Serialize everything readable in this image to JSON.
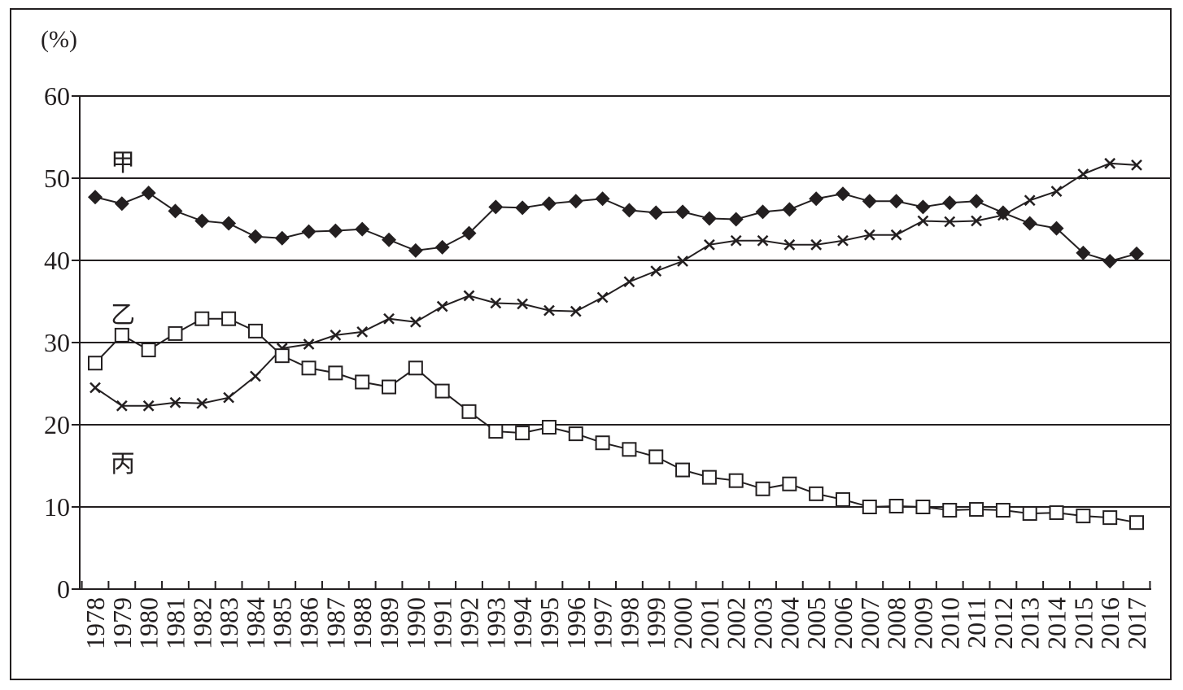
{
  "chart_data": {
    "type": "line",
    "ylabel": "(%)",
    "ylim": [
      0,
      60
    ],
    "yticks": [
      0,
      10,
      20,
      30,
      40,
      50,
      60
    ],
    "grid": true,
    "categories": [
      "1978",
      "1979",
      "1980",
      "1981",
      "1982",
      "1983",
      "1984",
      "1985",
      "1986",
      "1987",
      "1988",
      "1989",
      "1990",
      "1991",
      "1992",
      "1993",
      "1994",
      "1995",
      "1996",
      "1997",
      "1998",
      "1999",
      "2000",
      "2001",
      "2002",
      "2003",
      "2004",
      "2005",
      "2006",
      "2007",
      "2008",
      "2009",
      "2010",
      "2011",
      "2012",
      "2013",
      "2014",
      "2015",
      "2016",
      "2017"
    ],
    "series": [
      {
        "name": "甲",
        "marker": "diamond",
        "values": [
          47.7,
          46.9,
          48.2,
          46.0,
          44.8,
          44.5,
          42.9,
          42.7,
          43.5,
          43.6,
          43.8,
          42.5,
          41.2,
          41.6,
          43.3,
          46.5,
          46.4,
          46.9,
          47.2,
          47.5,
          46.1,
          45.8,
          45.9,
          45.1,
          45.0,
          45.9,
          46.2,
          47.5,
          48.1,
          47.2,
          47.2,
          46.5,
          47.0,
          47.2,
          45.8,
          44.5,
          43.9,
          40.9,
          39.9,
          40.8
        ],
        "color": "#231f20"
      },
      {
        "name": "乙",
        "marker": "x",
        "values": [
          24.5,
          22.3,
          22.3,
          22.7,
          22.6,
          23.3,
          25.9,
          29.3,
          29.8,
          30.9,
          31.3,
          32.9,
          32.5,
          34.4,
          35.7,
          34.8,
          34.7,
          33.9,
          33.8,
          35.5,
          37.4,
          38.7,
          39.9,
          41.9,
          42.4,
          42.4,
          41.9,
          41.9,
          42.4,
          43.1,
          43.1,
          44.8,
          44.7,
          44.8,
          45.5,
          47.3,
          48.4,
          50.5,
          51.8,
          51.6
        ],
        "color": "#231f20"
      },
      {
        "name": "丙",
        "marker": "square",
        "values": [
          27.5,
          30.9,
          29.1,
          31.1,
          32.9,
          32.9,
          31.4,
          28.4,
          26.9,
          26.3,
          25.2,
          24.6,
          26.9,
          24.1,
          21.6,
          19.2,
          19.0,
          19.7,
          18.9,
          17.8,
          17.0,
          16.1,
          14.5,
          13.6,
          13.2,
          12.2,
          12.8,
          11.6,
          10.9,
          10.0,
          10.1,
          10.0,
          9.6,
          9.7,
          9.6,
          9.2,
          9.3,
          8.9,
          8.7,
          8.1
        ],
        "color": "#231f20"
      }
    ]
  }
}
